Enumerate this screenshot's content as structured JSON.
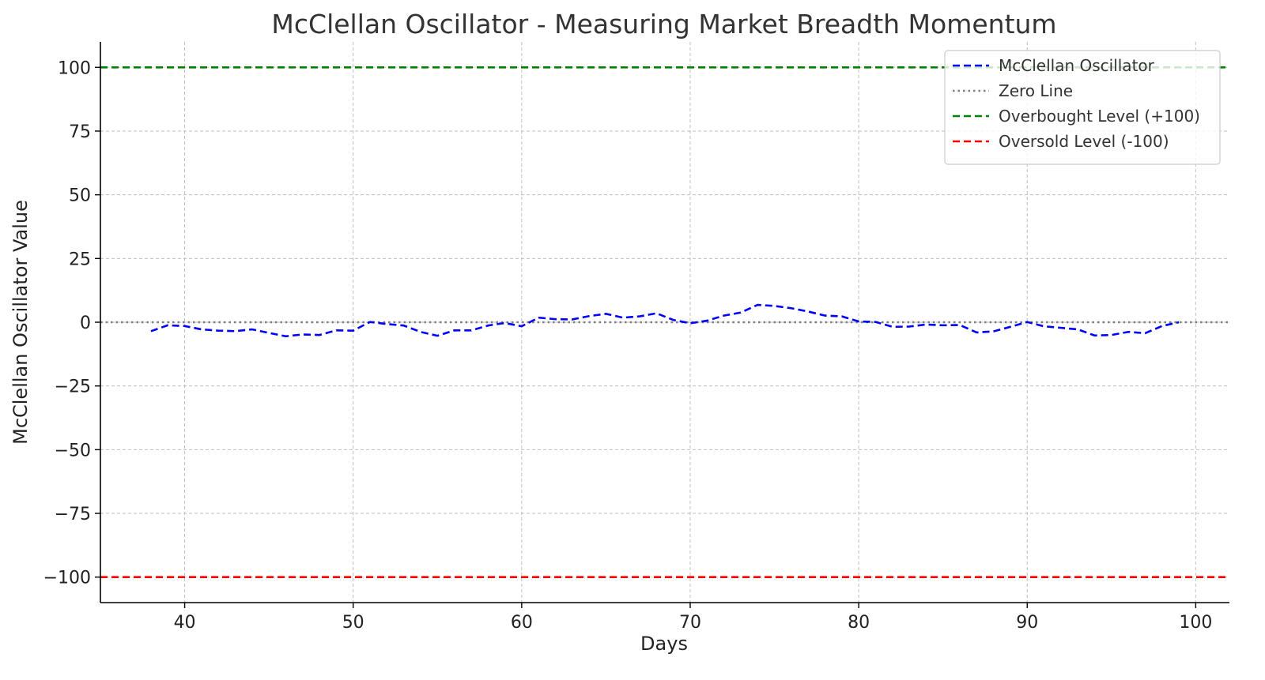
{
  "chart_data": {
    "type": "line",
    "title": "McClellan Oscillator - Measuring Market Breadth Momentum",
    "xlabel": "Days",
    "ylabel": "McClellan Oscillator Value",
    "xlim": [
      35,
      102
    ],
    "ylim": [
      -110,
      110
    ],
    "xticks": [
      40,
      50,
      60,
      70,
      80,
      90,
      100
    ],
    "yticks": [
      100,
      75,
      50,
      25,
      0,
      -25,
      -50,
      -75,
      -100
    ],
    "ytick_labels": [
      "100",
      "75",
      "50",
      "25",
      "0",
      "−25",
      "−50",
      "−75",
      "−100"
    ],
    "grid": true,
    "legend_position": "top-right",
    "series": [
      {
        "name": "McClellan Oscillator",
        "color": "#0000ff",
        "style": "dashed",
        "x": [
          38,
          39,
          40,
          41,
          42,
          43,
          44,
          45,
          46,
          47,
          48,
          49,
          50,
          51,
          52,
          53,
          54,
          55,
          56,
          57,
          58,
          59,
          60,
          61,
          62,
          63,
          64,
          65,
          66,
          67,
          68,
          69,
          70,
          71,
          72,
          73,
          74,
          75,
          76,
          77,
          78,
          79,
          80,
          81,
          82,
          83,
          84,
          85,
          86,
          87,
          88,
          89,
          90,
          91,
          92,
          93,
          94,
          95,
          96,
          97,
          98,
          99
        ],
        "y": [
          -3.5,
          -1.2,
          -1.5,
          -2.8,
          -3.3,
          -3.5,
          -2.8,
          -4.2,
          -5.5,
          -4.8,
          -5.0,
          -3.2,
          -3.3,
          0.1,
          -0.7,
          -1.3,
          -3.8,
          -5.3,
          -3.2,
          -3.2,
          -1.3,
          -0.3,
          -1.6,
          1.8,
          1.2,
          1.1,
          2.4,
          3.3,
          1.8,
          2.3,
          3.5,
          0.9,
          -0.4,
          0.6,
          2.6,
          3.8,
          6.8,
          6.4,
          5.5,
          4.2,
          2.6,
          2.3,
          0.3,
          0.1,
          -1.8,
          -1.7,
          -0.9,
          -1.2,
          -1.1,
          -4.0,
          -3.6,
          -1.8,
          0.1,
          -1.6,
          -2.2,
          -2.8,
          -5.2,
          -5.0,
          -3.8,
          -4.3,
          -1.5,
          0.0
        ]
      },
      {
        "name": "Zero Line",
        "color": "#808080",
        "style": "dotted",
        "value": 0
      },
      {
        "name": "Overbought Level (+100)",
        "color": "#008000",
        "style": "dashed",
        "value": 100
      },
      {
        "name": "Oversold Level (-100)",
        "color": "#ff0000",
        "style": "dashed",
        "value": -100
      }
    ]
  }
}
